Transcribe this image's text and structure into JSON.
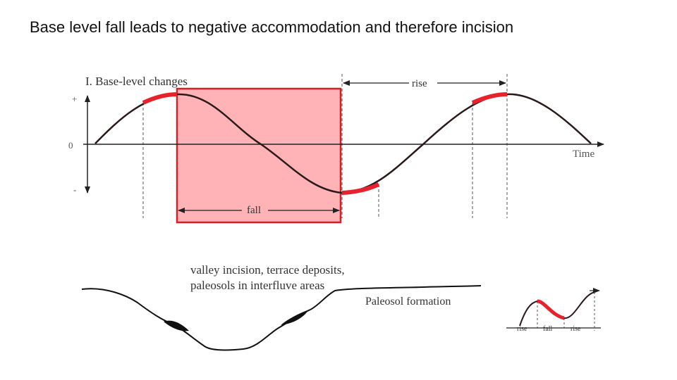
{
  "slide": {
    "title": "Base level fall leads to negative accommodation and therefore incision"
  },
  "diagram": {
    "panel_title": "I. Base-level changes",
    "y_plus": "+",
    "y_zero": "0",
    "y_minus": "-",
    "x_axis_label": "Time",
    "rise_label": "rise",
    "fall_label": "fall",
    "valley_caption_line1": "valley incision, terrace deposits,",
    "valley_caption_line2": "paleosols in interfluve areas",
    "paleosol_label": "Paleosol formation",
    "inset_rise_left": "rise",
    "inset_fall": "fall",
    "inset_rise_right": "rise"
  },
  "colors": {
    "highlight_fill": "#ffb3b6",
    "highlight_border": "#d81f26",
    "accent_red": "#e8222b",
    "curve": "#2a1a1a",
    "axis": "#222222",
    "terrain": "#111111"
  }
}
